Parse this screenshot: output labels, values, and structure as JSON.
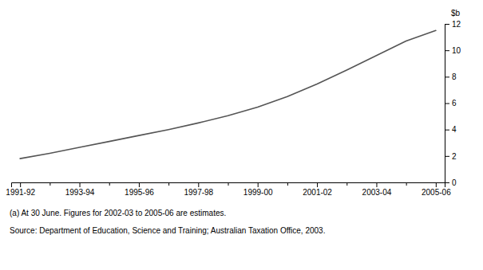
{
  "chart_data": {
    "type": "line",
    "y_label": "$b",
    "categories": [
      "1991-92",
      null,
      "1993-94",
      null,
      "1995-96",
      null,
      "1997-98",
      null,
      "1999-00",
      null,
      "2001-02",
      null,
      "2003-04",
      null,
      "2005-06"
    ],
    "values": [
      1.8,
      2.2,
      2.65,
      3.1,
      3.55,
      4.0,
      4.5,
      5.05,
      5.7,
      6.5,
      7.45,
      8.5,
      9.6,
      10.7,
      11.5
    ],
    "color": "#555555",
    "ylim": [
      0,
      12
    ],
    "yticks": [
      0,
      2,
      4,
      6,
      8,
      10,
      12
    ],
    "grid": false,
    "annotations": [
      "(a) At 30 June. Figures for 2002-03 to 2005-06 are estimates.",
      "Source: Department of Education, Science and Training; Australian Taxation Office, 2003."
    ]
  }
}
